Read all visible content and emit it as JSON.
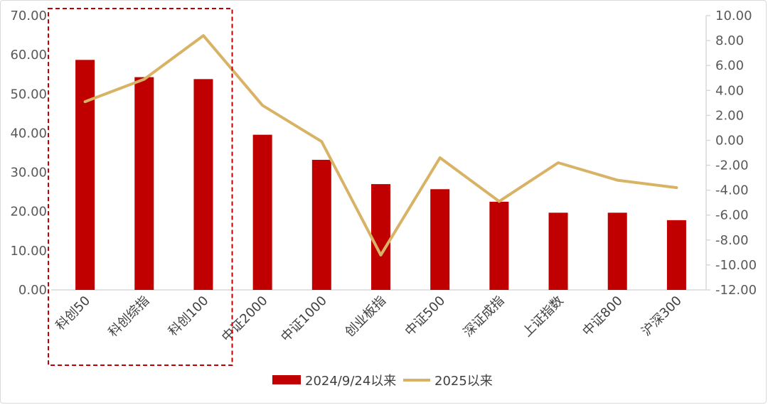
{
  "chart_data": {
    "type": "bar",
    "categories": [
      "科创50",
      "科创综指",
      "科创100",
      "中证2000",
      "中证1000",
      "创业板指",
      "中证500",
      "深证成指",
      "上证指数",
      "中证800",
      "沪深300"
    ],
    "series": [
      {
        "name": "2024/9/24以来",
        "type": "bar",
        "axis": "left",
        "color": "#C00000",
        "values": [
          58.7,
          54.3,
          53.8,
          39.6,
          33.2,
          27.0,
          25.7,
          22.5,
          19.7,
          19.7,
          17.8
        ]
      },
      {
        "name": "2025以来",
        "type": "line",
        "axis": "right",
        "color": "#D9B365",
        "values": [
          3.1,
          4.9,
          8.4,
          2.8,
          -0.1,
          -9.2,
          -1.4,
          -4.9,
          -1.8,
          -3.2,
          -3.8
        ]
      }
    ],
    "y_left": {
      "min": 0,
      "max": 70,
      "step": 10,
      "ticks": [
        "0.00",
        "10.00",
        "20.00",
        "30.00",
        "40.00",
        "50.00",
        "60.00",
        "70.00"
      ]
    },
    "y_right": {
      "min": -12,
      "max": 10,
      "step": 2,
      "ticks": [
        "-12.00",
        "-10.00",
        "-8.00",
        "-6.00",
        "-4.00",
        "-2.00",
        "0.00",
        "2.00",
        "4.00",
        "6.00",
        "8.00",
        "10.00"
      ]
    },
    "title": "",
    "xlabel": "",
    "ylabel": "",
    "grid": false,
    "legend_position": "bottom",
    "highlight": {
      "categories": [
        "科创50",
        "科创综指",
        "科创100"
      ],
      "style": "dashed-box",
      "color": "#C00000"
    }
  }
}
